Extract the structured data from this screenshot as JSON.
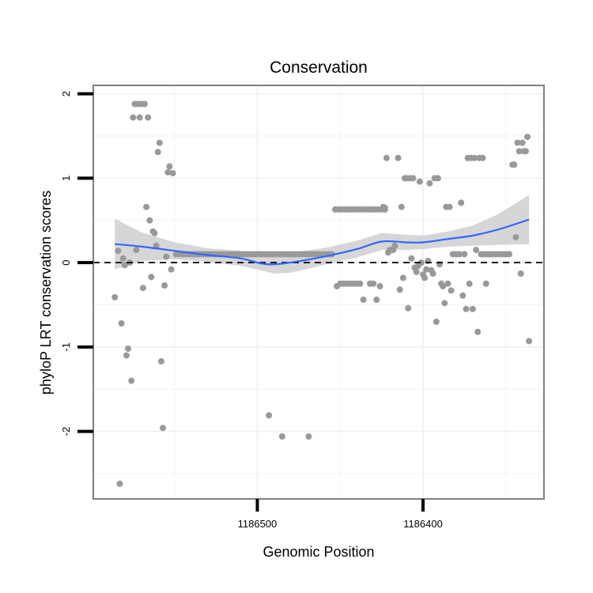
{
  "chart_data": {
    "type": "scatter",
    "title": "Conservation",
    "xlabel": "Genomic Position",
    "ylabel": "phyloP LRT conservation scores",
    "xlim": [
      1186599,
      1186327
    ],
    "ylim": [
      -2.8,
      2.1
    ],
    "x_reversed": true,
    "x_ticks": [
      1186500,
      1186400
    ],
    "x_tick_labels": [
      "1186500",
      "1186400"
    ],
    "y_ticks": [
      2,
      1,
      0,
      -1,
      -2
    ],
    "y_tick_labels": [
      "2",
      "1",
      "0",
      "-1",
      "-2"
    ],
    "grid": true,
    "reference_line": {
      "y": 0,
      "style": "dashed"
    },
    "colors": {
      "points": "#999999",
      "smooth_line": "#3366FF",
      "ribbon": "#cccccc",
      "panel_border": "#7f7f7f",
      "grid": "#f2f2f2"
    },
    "points": [
      {
        "x": 1186586,
        "y": -0.41
      },
      {
        "x": 1186584,
        "y": 0.14
      },
      {
        "x": 1186583,
        "y": -2.62
      },
      {
        "x": 1186582,
        "y": -0.72
      },
      {
        "x": 1186581,
        "y": 0.05
      },
      {
        "x": 1186580,
        "y": -0.03
      },
      {
        "x": 1186579,
        "y": -1.1
      },
      {
        "x": 1186578,
        "y": -1.02
      },
      {
        "x": 1186577,
        "y": 0.0
      },
      {
        "x": 1186576,
        "y": -1.4
      },
      {
        "x": 1186575,
        "y": 1.72
      },
      {
        "x": 1186574,
        "y": 1.88
      },
      {
        "x": 1186573,
        "y": 0.15
      },
      {
        "x": 1186572,
        "y": 1.88
      },
      {
        "x": 1186571,
        "y": 1.72
      },
      {
        "x": 1186570,
        "y": 1.88
      },
      {
        "x": 1186569,
        "y": -0.3
      },
      {
        "x": 1186568,
        "y": 1.88
      },
      {
        "x": 1186567,
        "y": 0.66
      },
      {
        "x": 1186566,
        "y": 1.72
      },
      {
        "x": 1186565,
        "y": 0.5
      },
      {
        "x": 1186564,
        "y": -0.17
      },
      {
        "x": 1186563,
        "y": 0.37
      },
      {
        "x": 1186562,
        "y": 0.35
      },
      {
        "x": 1186561,
        "y": 0.2
      },
      {
        "x": 1186560,
        "y": 1.31
      },
      {
        "x": 1186559,
        "y": 1.42
      },
      {
        "x": 1186558,
        "y": -1.17
      },
      {
        "x": 1186557,
        "y": -1.96
      },
      {
        "x": 1186556,
        "y": -0.27
      },
      {
        "x": 1186555,
        "y": 0.07
      },
      {
        "x": 1186554,
        "y": 1.07
      },
      {
        "x": 1186553,
        "y": 1.14
      },
      {
        "x": 1186552,
        "y": -0.08
      },
      {
        "x": 1186551,
        "y": 1.06
      },
      {
        "x": 1186549,
        "y": 0.1
      },
      {
        "x": 1186547,
        "y": 0.1
      },
      {
        "x": 1186545,
        "y": 0.1
      },
      {
        "x": 1186543,
        "y": 0.1
      },
      {
        "x": 1186541,
        "y": 0.1
      },
      {
        "x": 1186539,
        "y": 0.1
      },
      {
        "x": 1186537,
        "y": 0.1
      },
      {
        "x": 1186535,
        "y": 0.1
      },
      {
        "x": 1186533,
        "y": 0.1
      },
      {
        "x": 1186531,
        "y": 0.1
      },
      {
        "x": 1186529,
        "y": 0.1
      },
      {
        "x": 1186527,
        "y": 0.1
      },
      {
        "x": 1186525,
        "y": 0.1
      },
      {
        "x": 1186523,
        "y": 0.1
      },
      {
        "x": 1186521,
        "y": 0.1
      },
      {
        "x": 1186519,
        "y": 0.1
      },
      {
        "x": 1186517,
        "y": 0.1
      },
      {
        "x": 1186515,
        "y": 0.1
      },
      {
        "x": 1186513,
        "y": 0.1
      },
      {
        "x": 1186511,
        "y": 0.1
      },
      {
        "x": 1186509,
        "y": 0.1
      },
      {
        "x": 1186507,
        "y": 0.1
      },
      {
        "x": 1186505,
        "y": 0.1
      },
      {
        "x": 1186503,
        "y": 0.1
      },
      {
        "x": 1186501,
        "y": 0.1
      },
      {
        "x": 1186499,
        "y": 0.1
      },
      {
        "x": 1186497,
        "y": 0.1
      },
      {
        "x": 1186495,
        "y": 0.1
      },
      {
        "x": 1186493,
        "y": 0.1
      },
      {
        "x": 1186491,
        "y": 0.1
      },
      {
        "x": 1186489,
        "y": 0.1
      },
      {
        "x": 1186487,
        "y": 0.1
      },
      {
        "x": 1186485,
        "y": 0.1
      },
      {
        "x": 1186483,
        "y": 0.1
      },
      {
        "x": 1186481,
        "y": 0.1
      },
      {
        "x": 1186479,
        "y": 0.1
      },
      {
        "x": 1186477,
        "y": 0.1
      },
      {
        "x": 1186475,
        "y": 0.1
      },
      {
        "x": 1186473,
        "y": 0.1
      },
      {
        "x": 1186471,
        "y": 0.1
      },
      {
        "x": 1186469,
        "y": 0.1
      },
      {
        "x": 1186467,
        "y": 0.1
      },
      {
        "x": 1186465,
        "y": 0.1
      },
      {
        "x": 1186463,
        "y": 0.1
      },
      {
        "x": 1186461,
        "y": 0.1
      },
      {
        "x": 1186459,
        "y": 0.1
      },
      {
        "x": 1186457,
        "y": 0.1
      },
      {
        "x": 1186455,
        "y": 0.1
      },
      {
        "x": 1186493,
        "y": -1.81
      },
      {
        "x": 1186485,
        "y": -2.06
      },
      {
        "x": 1186469,
        "y": -2.06
      },
      {
        "x": 1186453,
        "y": 0.63
      },
      {
        "x": 1186451,
        "y": 0.63
      },
      {
        "x": 1186449,
        "y": 0.63
      },
      {
        "x": 1186447,
        "y": 0.63
      },
      {
        "x": 1186445,
        "y": 0.63
      },
      {
        "x": 1186443,
        "y": 0.63
      },
      {
        "x": 1186441,
        "y": 0.63
      },
      {
        "x": 1186439,
        "y": 0.63
      },
      {
        "x": 1186437,
        "y": 0.63
      },
      {
        "x": 1186435,
        "y": 0.63
      },
      {
        "x": 1186433,
        "y": 0.63
      },
      {
        "x": 1186431,
        "y": 0.63
      },
      {
        "x": 1186429,
        "y": 0.63
      },
      {
        "x": 1186427,
        "y": 0.63
      },
      {
        "x": 1186425,
        "y": 0.63
      },
      {
        "x": 1186423,
        "y": 0.63
      },
      {
        "x": 1186452,
        "y": -0.28
      },
      {
        "x": 1186450,
        "y": -0.25
      },
      {
        "x": 1186448,
        "y": -0.25
      },
      {
        "x": 1186446,
        "y": -0.25
      },
      {
        "x": 1186444,
        "y": -0.25
      },
      {
        "x": 1186442,
        "y": -0.25
      },
      {
        "x": 1186440,
        "y": -0.25
      },
      {
        "x": 1186438,
        "y": -0.25
      },
      {
        "x": 1186436,
        "y": -0.44
      },
      {
        "x": 1186432,
        "y": -0.25
      },
      {
        "x": 1186430,
        "y": -0.25
      },
      {
        "x": 1186428,
        "y": -0.44
      },
      {
        "x": 1186426,
        "y": -0.28
      },
      {
        "x": 1186424,
        "y": 0.66
      },
      {
        "x": 1186423,
        "y": 0.65
      },
      {
        "x": 1186422,
        "y": 1.24
      },
      {
        "x": 1186421,
        "y": 0.12
      },
      {
        "x": 1186420,
        "y": 0.15
      },
      {
        "x": 1186419,
        "y": 0.15
      },
      {
        "x": 1186418,
        "y": 0.15
      },
      {
        "x": 1186417,
        "y": 0.2
      },
      {
        "x": 1186415,
        "y": 1.24
      },
      {
        "x": 1186414,
        "y": -0.32
      },
      {
        "x": 1186413,
        "y": 0.66
      },
      {
        "x": 1186412,
        "y": -0.18
      },
      {
        "x": 1186411,
        "y": 1.0
      },
      {
        "x": 1186410,
        "y": 1.0
      },
      {
        "x": 1186409,
        "y": -0.54
      },
      {
        "x": 1186408,
        "y": 1.0
      },
      {
        "x": 1186407,
        "y": 0.05
      },
      {
        "x": 1186406,
        "y": 1.0
      },
      {
        "x": 1186405,
        "y": -0.06
      },
      {
        "x": 1186404,
        "y": -0.11
      },
      {
        "x": 1186403,
        "y": -0.04
      },
      {
        "x": 1186402,
        "y": 0.96
      },
      {
        "x": 1186401,
        "y": 0.0
      },
      {
        "x": 1186400,
        "y": -0.14
      },
      {
        "x": 1186399,
        "y": -0.18
      },
      {
        "x": 1186398,
        "y": -0.08
      },
      {
        "x": 1186397,
        "y": 0.02
      },
      {
        "x": 1186396,
        "y": 0.94
      },
      {
        "x": 1186395,
        "y": -0.09
      },
      {
        "x": 1186394,
        "y": -0.13
      },
      {
        "x": 1186393,
        "y": 1.0
      },
      {
        "x": 1186392,
        "y": -0.7
      },
      {
        "x": 1186391,
        "y": 1.0
      },
      {
        "x": 1186390,
        "y": -0.02
      },
      {
        "x": 1186389,
        "y": -0.25
      },
      {
        "x": 1186388,
        "y": -0.28
      },
      {
        "x": 1186387,
        "y": -0.48
      },
      {
        "x": 1186386,
        "y": 0.66
      },
      {
        "x": 1186385,
        "y": -0.25
      },
      {
        "x": 1186384,
        "y": 0.66
      },
      {
        "x": 1186383,
        "y": -0.33
      },
      {
        "x": 1186382,
        "y": 0.1
      },
      {
        "x": 1186380,
        "y": 0.1
      },
      {
        "x": 1186378,
        "y": 0.1
      },
      {
        "x": 1186377,
        "y": 0.71
      },
      {
        "x": 1186376,
        "y": -0.39
      },
      {
        "x": 1186375,
        "y": 0.1
      },
      {
        "x": 1186374,
        "y": -0.55
      },
      {
        "x": 1186373,
        "y": 1.24
      },
      {
        "x": 1186372,
        "y": -0.25
      },
      {
        "x": 1186371,
        "y": 1.24
      },
      {
        "x": 1186370,
        "y": -0.55
      },
      {
        "x": 1186369,
        "y": 1.24
      },
      {
        "x": 1186368,
        "y": 0.15
      },
      {
        "x": 1186367,
        "y": -0.82
      },
      {
        "x": 1186366,
        "y": 1.24
      },
      {
        "x": 1186365,
        "y": 0.1
      },
      {
        "x": 1186364,
        "y": 1.24
      },
      {
        "x": 1186363,
        "y": 0.1
      },
      {
        "x": 1186362,
        "y": -0.25
      },
      {
        "x": 1186361,
        "y": 0.1
      },
      {
        "x": 1186360,
        "y": 0.1
      },
      {
        "x": 1186358,
        "y": 0.1
      },
      {
        "x": 1186356,
        "y": 0.1
      },
      {
        "x": 1186354,
        "y": 0.1
      },
      {
        "x": 1186352,
        "y": 0.1
      },
      {
        "x": 1186350,
        "y": 0.1
      },
      {
        "x": 1186348,
        "y": 0.1
      },
      {
        "x": 1186346,
        "y": 1.16
      },
      {
        "x": 1186345,
        "y": 1.16
      },
      {
        "x": 1186344,
        "y": 0.3
      },
      {
        "x": 1186343,
        "y": 1.42
      },
      {
        "x": 1186342,
        "y": 1.32
      },
      {
        "x": 1186341,
        "y": -0.13
      },
      {
        "x": 1186340,
        "y": 1.42
      },
      {
        "x": 1186339,
        "y": 1.32
      },
      {
        "x": 1186338,
        "y": 1.32
      },
      {
        "x": 1186337,
        "y": 1.49
      },
      {
        "x": 1186336,
        "y": -0.93
      }
    ],
    "smooth_fit": {
      "x": [
        1186586,
        1186570,
        1186550,
        1186530,
        1186510,
        1186498,
        1186490,
        1186480,
        1186460,
        1186440,
        1186425,
        1186410,
        1186400,
        1186385,
        1186370,
        1186355,
        1186336
      ],
      "y": [
        0.22,
        0.19,
        0.14,
        0.09,
        0.05,
        -0.01,
        -0.02,
        0.0,
        0.07,
        0.16,
        0.25,
        0.24,
        0.24,
        0.28,
        0.32,
        0.39,
        0.51
      ],
      "lower": [
        -0.08,
        0.02,
        0.04,
        0.01,
        -0.04,
        -0.09,
        -0.13,
        -0.12,
        -0.03,
        0.06,
        0.15,
        0.15,
        0.16,
        0.19,
        0.2,
        0.21,
        0.22
      ],
      "upper": [
        0.52,
        0.36,
        0.24,
        0.17,
        0.14,
        0.07,
        0.09,
        0.12,
        0.17,
        0.26,
        0.35,
        0.33,
        0.32,
        0.37,
        0.44,
        0.57,
        0.8
      ]
    }
  }
}
